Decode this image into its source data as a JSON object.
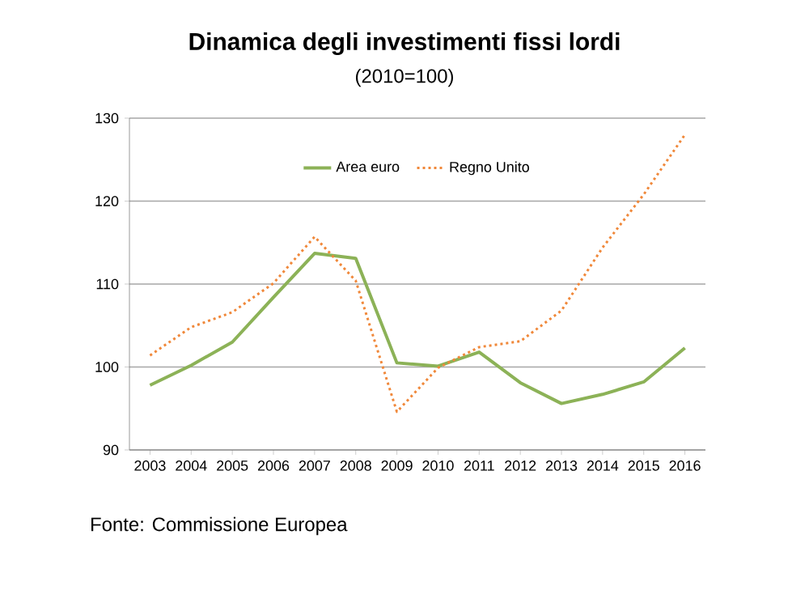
{
  "chart_data": {
    "type": "line",
    "title": "Dinamica degli investimenti fissi lordi",
    "subtitle": "(2010=100)",
    "categories": [
      "2003",
      "2004",
      "2005",
      "2006",
      "2007",
      "2008",
      "2009",
      "2010",
      "2011",
      "2012",
      "2013",
      "2014",
      "2015",
      "2016"
    ],
    "series": [
      {
        "name": "Area euro",
        "color": "#8cb257",
        "line_style": "solid",
        "values": [
          97.8,
          100.2,
          103.0,
          108.4,
          113.7,
          113.1,
          100.5,
          100.1,
          101.8,
          98.1,
          95.6,
          96.7,
          98.2,
          102.3
        ]
      },
      {
        "name": "Regno Unito",
        "color": "#f0883a",
        "line_style": "dotted",
        "values": [
          101.4,
          104.8,
          106.6,
          110.1,
          115.7,
          110.4,
          94.6,
          99.9,
          102.4,
          103.1,
          106.8,
          114.4,
          120.8,
          128.0
        ]
      }
    ],
    "ylim": [
      90,
      130
    ],
    "yticks": [
      90,
      100,
      110,
      120,
      130
    ],
    "grid": "y",
    "legend": "top",
    "annotations": [
      "Fonte:   Commissione Europea"
    ]
  }
}
